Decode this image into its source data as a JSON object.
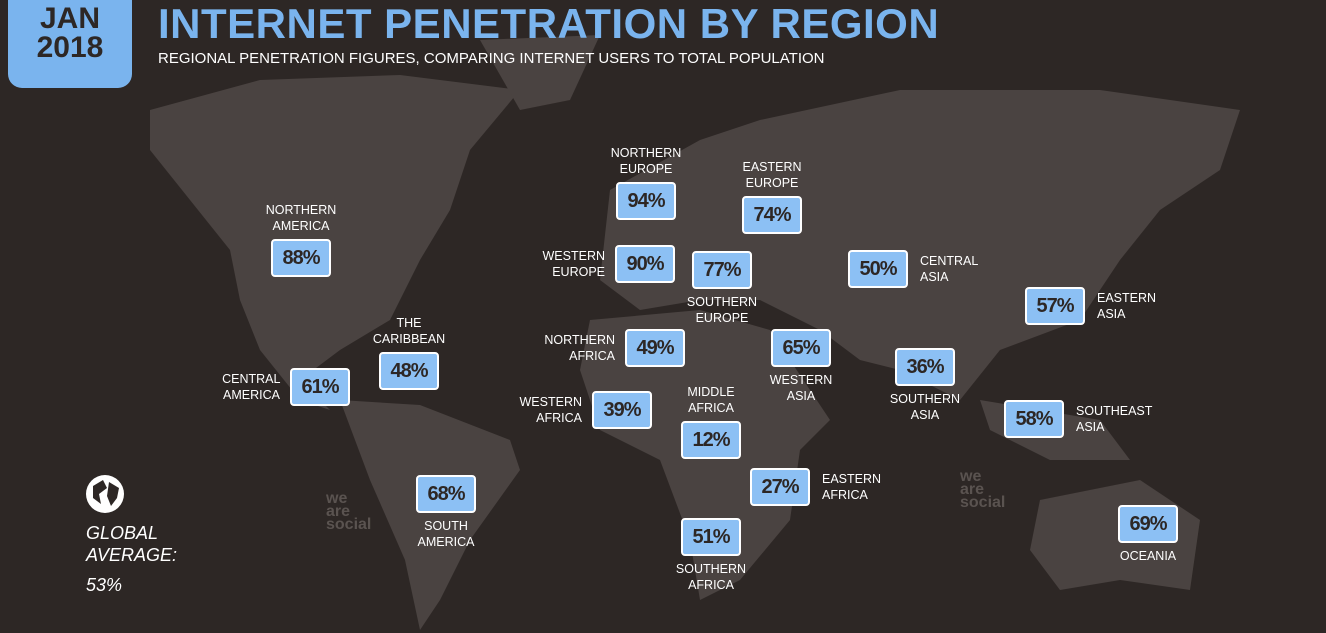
{
  "badge": {
    "month": "JAN",
    "year": "2018"
  },
  "title": "INTERNET PENETRATION BY REGION",
  "subtitle": "REGIONAL PENETRATION FIGURES, COMPARING INTERNET USERS TO TOTAL POPULATION",
  "regions": [
    {
      "name": "NORTHERN AMERICA",
      "value": "88%"
    },
    {
      "name": "CENTRAL AMERICA",
      "value": "61%"
    },
    {
      "name": "THE CARIBBEAN",
      "value": "48%"
    },
    {
      "name": "SOUTH AMERICA",
      "value": "68%"
    },
    {
      "name": "NORTHERN EUROPE",
      "value": "94%"
    },
    {
      "name": "WESTERN EUROPE",
      "value": "90%"
    },
    {
      "name": "SOUTHERN EUROPE",
      "value": "77%"
    },
    {
      "name": "EASTERN EUROPE",
      "value": "74%"
    },
    {
      "name": "NORTHERN AFRICA",
      "value": "49%"
    },
    {
      "name": "WESTERN AFRICA",
      "value": "39%"
    },
    {
      "name": "MIDDLE AFRICA",
      "value": "12%"
    },
    {
      "name": "EASTERN AFRICA",
      "value": "27%"
    },
    {
      "name": "SOUTHERN AFRICA",
      "value": "51%"
    },
    {
      "name": "WESTERN ASIA",
      "value": "65%"
    },
    {
      "name": "CENTRAL ASIA",
      "value": "50%"
    },
    {
      "name": "SOUTHERN ASIA",
      "value": "36%"
    },
    {
      "name": "EASTERN ASIA",
      "value": "57%"
    },
    {
      "name": "SOUTHEAST ASIA",
      "value": "58%"
    },
    {
      "name": "OCEANIA",
      "value": "69%"
    }
  ],
  "global_average": {
    "label": "GLOBAL AVERAGE:",
    "value": "53%"
  },
  "watermark": "we are social"
}
